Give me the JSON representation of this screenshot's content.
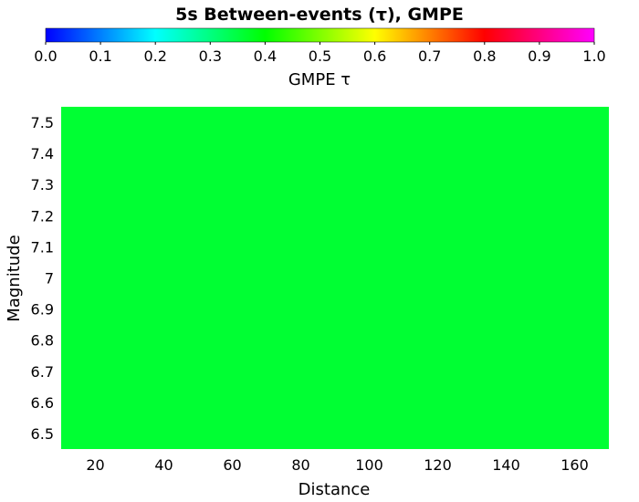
{
  "chart_data": {
    "type": "heatmap",
    "title": "5s Between-events (τ), GMPE",
    "xlabel": "Distance",
    "ylabel": "Magnitude",
    "xlim": [
      10,
      170
    ],
    "ylim": [
      6.45,
      7.55
    ],
    "xticks": [
      "20",
      "40",
      "60",
      "80",
      "100",
      "120",
      "140",
      "160"
    ],
    "yticks": [
      "6.5",
      "6.6",
      "6.7",
      "6.8",
      "6.9",
      "7",
      "7.1",
      "7.2",
      "7.3",
      "7.4",
      "7.5"
    ],
    "cells": [
      {
        "x_range": [
          10,
          170
        ],
        "y_range": [
          6.45,
          7.55
        ],
        "value": 0.36
      }
    ],
    "colorbar": {
      "label": "GMPE τ",
      "range": [
        0.0,
        1.0
      ],
      "ticks": [
        "0.0",
        "0.1",
        "0.2",
        "0.3",
        "0.4",
        "0.5",
        "0.6",
        "0.7",
        "0.8",
        "0.9",
        "1.0"
      ],
      "colormap": [
        "#0000ff",
        "#00ffff",
        "#00ff00",
        "#ffff00",
        "#ff0000",
        "#ff00ff"
      ]
    },
    "grid": false
  }
}
